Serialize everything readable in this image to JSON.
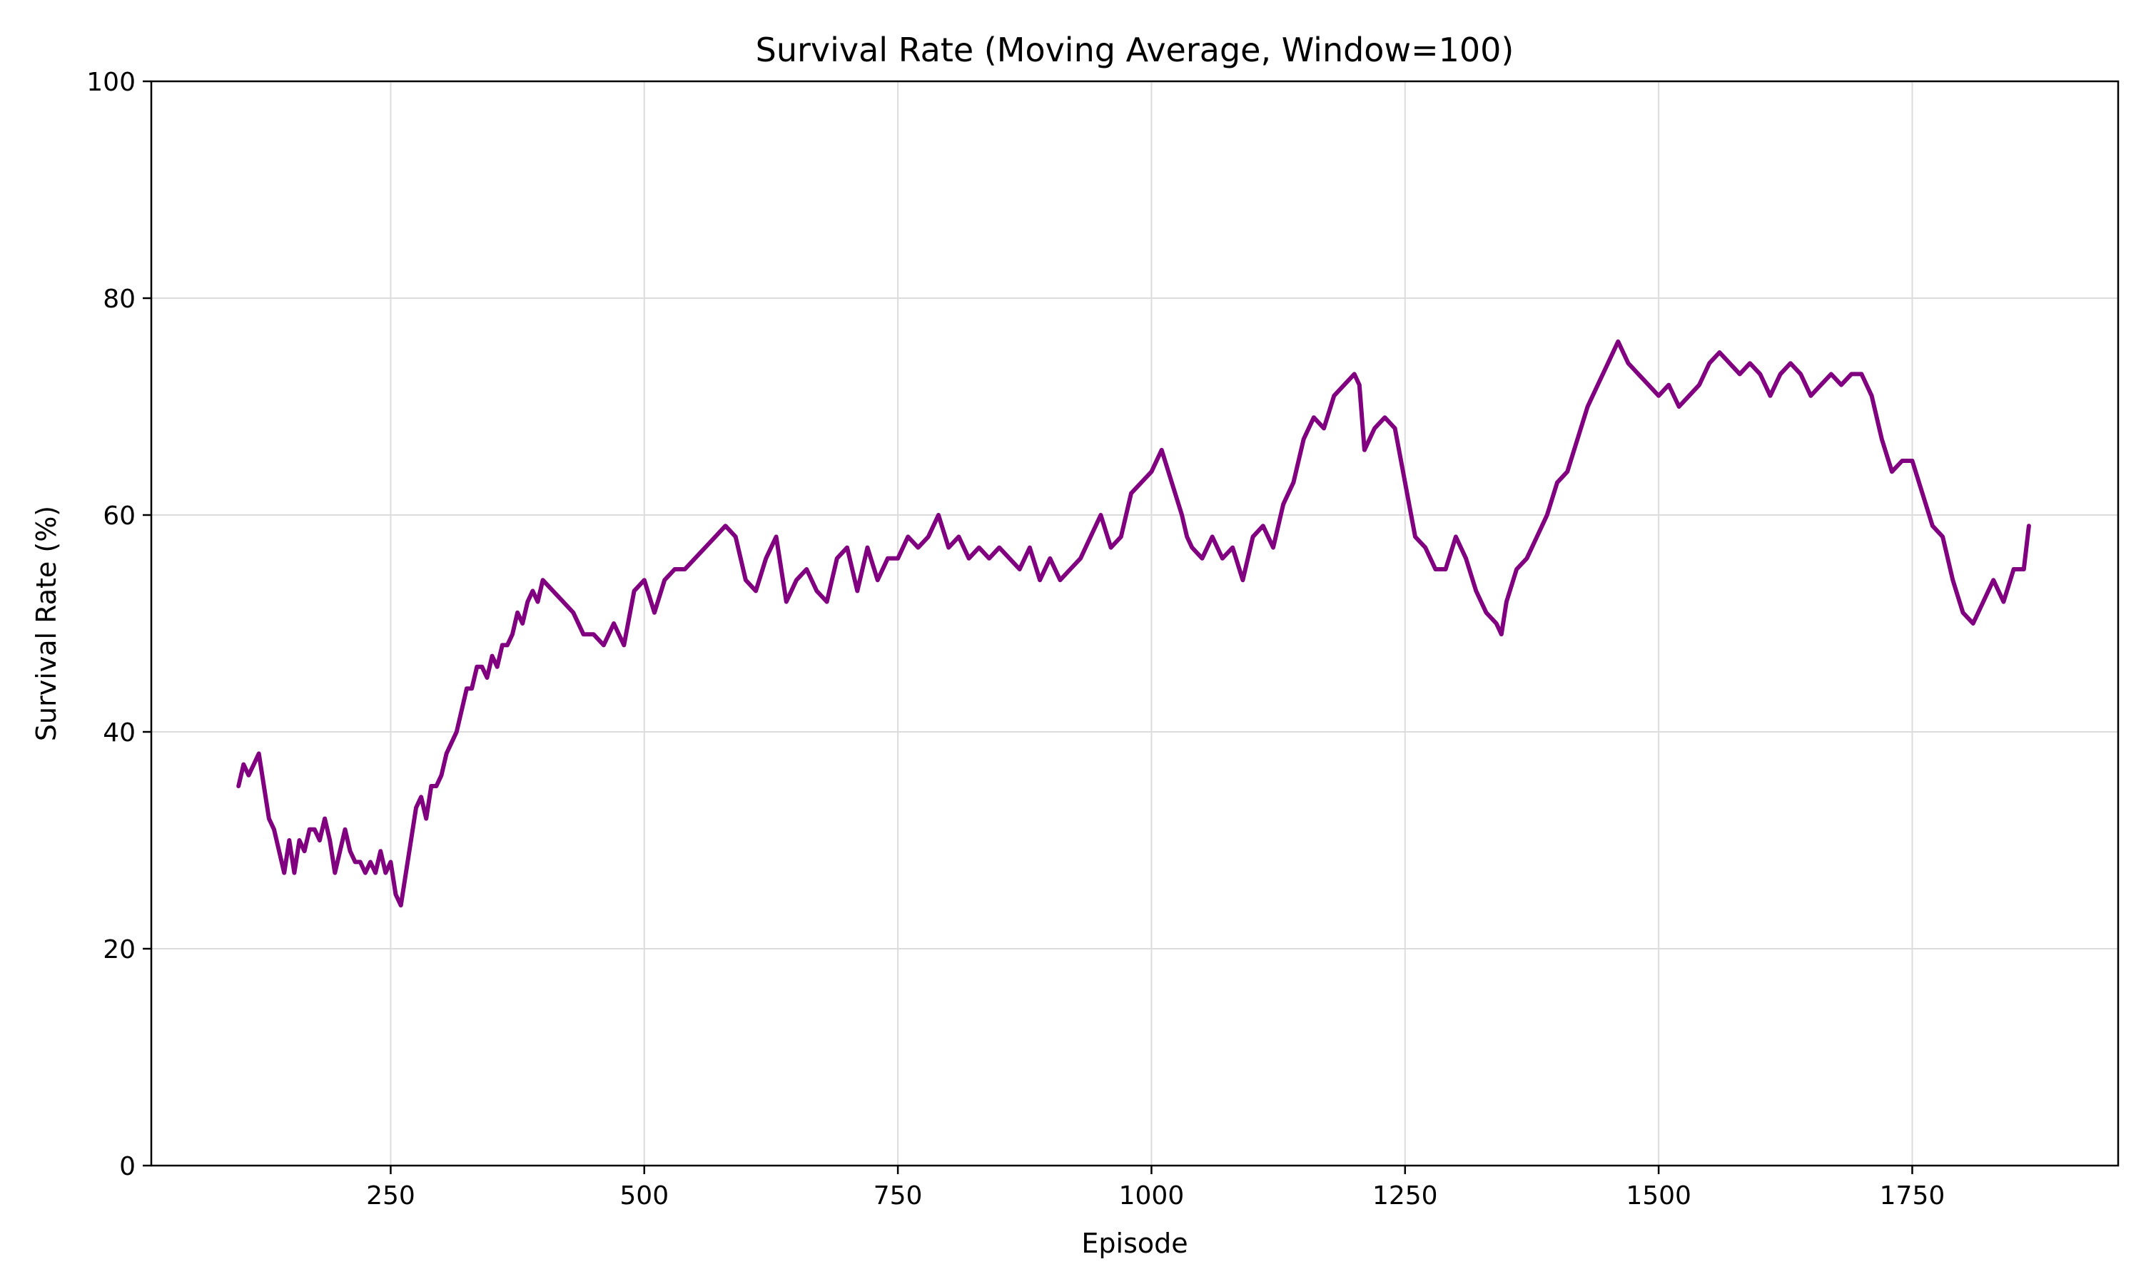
{
  "chart_data": {
    "type": "line",
    "title": "Survival Rate (Moving Average, Window=100)",
    "xlabel": "Episode",
    "ylabel": "Survival Rate (%)",
    "xlim": [
      14,
      1953
    ],
    "ylim": [
      0,
      100
    ],
    "xticks": [
      250,
      500,
      750,
      1000,
      1250,
      1500,
      1750
    ],
    "yticks": [
      0,
      20,
      40,
      60,
      80,
      100
    ],
    "grid": true,
    "line_color": "#800080",
    "series": [
      {
        "x": [
          100,
          105,
          110,
          115,
          120,
          125,
          130,
          135,
          140,
          145,
          150,
          155,
          160,
          165,
          170,
          175,
          180,
          185,
          190,
          195,
          200,
          205,
          210,
          215,
          220,
          225,
          230,
          235,
          240,
          245,
          250,
          255,
          260,
          265,
          270,
          275,
          280,
          285,
          290,
          295,
          300,
          305,
          310,
          315,
          320,
          325,
          330,
          335,
          340,
          345,
          350,
          355,
          360,
          365,
          370,
          375,
          380,
          385,
          390,
          395,
          400,
          410,
          420,
          430,
          440,
          450,
          460,
          470,
          480,
          490,
          500,
          510,
          520,
          530,
          540,
          550,
          560,
          570,
          580,
          590,
          600,
          610,
          620,
          630,
          640,
          650,
          660,
          670,
          680,
          690,
          700,
          710,
          720,
          730,
          740,
          750,
          760,
          770,
          780,
          790,
          800,
          810,
          820,
          830,
          840,
          850,
          860,
          870,
          880,
          890,
          900,
          910,
          920,
          930,
          940,
          950,
          960,
          970,
          980,
          990,
          1000,
          1010,
          1020,
          1030,
          1035,
          1040,
          1050,
          1060,
          1070,
          1080,
          1090,
          1100,
          1110,
          1120,
          1130,
          1140,
          1150,
          1160,
          1170,
          1180,
          1190,
          1200,
          1205,
          1210,
          1220,
          1230,
          1240,
          1250,
          1260,
          1270,
          1280,
          1290,
          1300,
          1310,
          1320,
          1330,
          1340,
          1345,
          1350,
          1360,
          1370,
          1380,
          1390,
          1400,
          1410,
          1420,
          1430,
          1440,
          1450,
          1460,
          1470,
          1480,
          1490,
          1500,
          1510,
          1520,
          1530,
          1540,
          1550,
          1560,
          1570,
          1580,
          1590,
          1600,
          1610,
          1620,
          1630,
          1640,
          1650,
          1660,
          1670,
          1680,
          1690,
          1700,
          1710,
          1720,
          1730,
          1740,
          1750,
          1760,
          1770,
          1780,
          1790,
          1800,
          1810,
          1820,
          1830,
          1840,
          1850,
          1860,
          1865
        ],
        "values": [
          35,
          37,
          36,
          37,
          38,
          35,
          32,
          31,
          29,
          27,
          30,
          27,
          30,
          29,
          31,
          31,
          30,
          32,
          30,
          27,
          29,
          31,
          29,
          28,
          28,
          27,
          28,
          27,
          29,
          27,
          28,
          25,
          24,
          27,
          30,
          33,
          34,
          32,
          35,
          35,
          36,
          38,
          39,
          40,
          42,
          44,
          44,
          46,
          46,
          45,
          47,
          46,
          48,
          48,
          49,
          51,
          50,
          52,
          53,
          52,
          54,
          53,
          52,
          51,
          49,
          49,
          48,
          50,
          48,
          53,
          54,
          51,
          54,
          55,
          55,
          56,
          57,
          58,
          59,
          58,
          54,
          53,
          56,
          58,
          52,
          54,
          55,
          53,
          52,
          56,
          57,
          53,
          57,
          54,
          56,
          56,
          58,
          57,
          58,
          60,
          57,
          58,
          56,
          57,
          56,
          57,
          56,
          55,
          57,
          54,
          56,
          54,
          55,
          56,
          58,
          60,
          57,
          58,
          62,
          63,
          64,
          66,
          63,
          60,
          58,
          57,
          56,
          58,
          56,
          57,
          54,
          58,
          59,
          57,
          61,
          63,
          67,
          69,
          68,
          71,
          72,
          73,
          72,
          66,
          68,
          69,
          68,
          63,
          58,
          57,
          55,
          55,
          58,
          56,
          53,
          51,
          50,
          49,
          52,
          55,
          56,
          58,
          60,
          63,
          64,
          67,
          70,
          72,
          74,
          76,
          74,
          73,
          72,
          71,
          72,
          70,
          71,
          72,
          74,
          75,
          74,
          73,
          74,
          73,
          71,
          73,
          74,
          73,
          71,
          72,
          73,
          72,
          73,
          73,
          71,
          67,
          64,
          65,
          65,
          62,
          59,
          58,
          54,
          51,
          50,
          52,
          54,
          52,
          55,
          55,
          59
        ]
      }
    ]
  }
}
